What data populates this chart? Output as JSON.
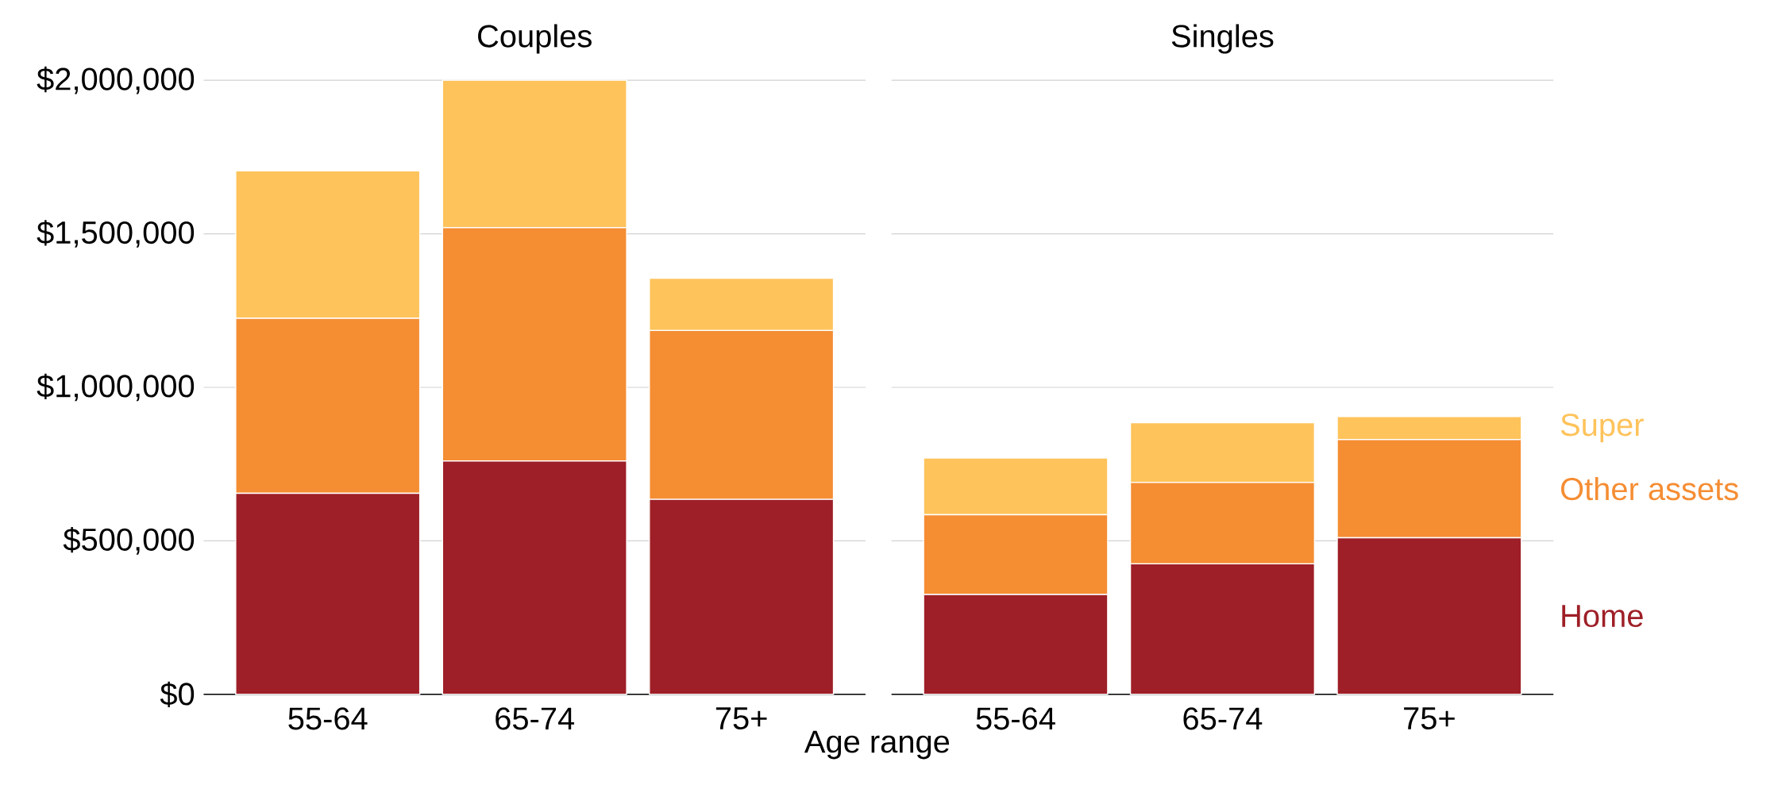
{
  "chart_data": [
    {
      "type": "bar",
      "title": "Couples",
      "xlabel": "Age range",
      "stacked": true,
      "categories": [
        "55-64",
        "65-74",
        "75+"
      ],
      "series": [
        {
          "color": "#9e1f27",
          "values": [
            655000,
            760000,
            635000
          ]
        },
        {
          "color": "#f58d33",
          "values": [
            570000,
            760000,
            550000
          ]
        },
        {
          "color": "#fec35b",
          "values": [
            480000,
            480000,
            170000
          ]
        }
      ],
      "ylim": [
        0,
        2000000
      ],
      "yticks": [
        {
          "value": 0,
          "label": "$0"
        },
        {
          "value": 500000,
          "label": "$500,000"
        },
        {
          "value": 1000000,
          "label": "$1,000,000"
        },
        {
          "value": 1500000,
          "label": "$1,500,000"
        },
        {
          "value": 2000000,
          "label": "$2,000,000"
        }
      ],
      "grid": "y"
    },
    {
      "type": "bar",
      "title": "Singles",
      "stacked": true,
      "categories": [
        "55-64",
        "65-74",
        "75+"
      ],
      "series": [
        {
          "name": "Home",
          "color": "#9e1f27",
          "values": [
            325000,
            425000,
            510000
          ]
        },
        {
          "name": "Other assets",
          "color": "#f58d33",
          "values": [
            260000,
            265000,
            320000
          ]
        },
        {
          "name": "Super",
          "color": "#fec35b",
          "values": [
            185000,
            195000,
            75000
          ]
        }
      ],
      "ylim": [
        0,
        2000000
      ],
      "yticks": [
        0,
        500000,
        1000000,
        1500000,
        2000000
      ],
      "grid": "y",
      "tick_labels": "x",
      "legend": "right"
    }
  ]
}
